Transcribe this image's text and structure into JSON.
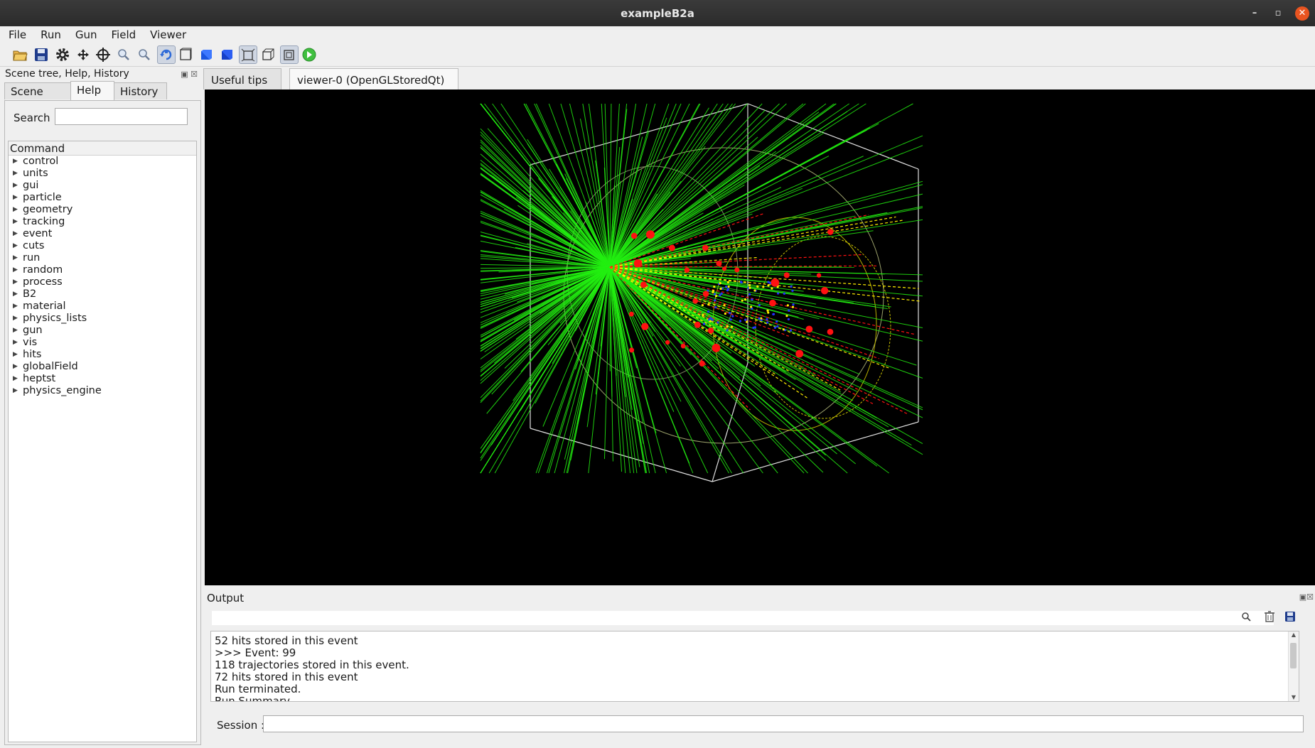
{
  "window": {
    "title": "exampleB2a"
  },
  "menu": [
    "File",
    "Run",
    "Gun",
    "Field",
    "Viewer"
  ],
  "toolbar": [
    {
      "icon": "open-folder-icon",
      "on": false
    },
    {
      "icon": "save-icon",
      "on": false
    },
    {
      "icon": "gear-icon",
      "on": false
    },
    {
      "icon": "move-icon",
      "on": false
    },
    {
      "icon": "crosshair-icon",
      "on": false
    },
    {
      "icon": "zoom-in-icon",
      "on": false
    },
    {
      "icon": "zoom-out-icon",
      "on": false
    },
    {
      "icon": "rotate-icon",
      "on": true
    },
    {
      "icon": "wireframe-icon",
      "on": false
    },
    {
      "icon": "hidden-line-icon",
      "on": false
    },
    {
      "icon": "solid-icon",
      "on": false
    },
    {
      "icon": "perspective-icon",
      "on": true
    },
    {
      "icon": "ortho-icon",
      "on": false
    },
    {
      "icon": "cube-view-icon",
      "on": true
    },
    {
      "icon": "run-beam-icon",
      "on": false
    }
  ],
  "left_dock": {
    "title": "Scene tree, Help, History",
    "tabs": [
      "Scene tree",
      "Help",
      "History"
    ],
    "active_tab": "Help",
    "search_label": "Search :",
    "search_value": "",
    "tree_header": "Command",
    "commands": [
      "control",
      "units",
      "gui",
      "particle",
      "geometry",
      "tracking",
      "event",
      "cuts",
      "run",
      "random",
      "process",
      "B2",
      "material",
      "physics_lists",
      "gun",
      "vis",
      "hits",
      "globalField",
      "heptst",
      "physics_engine"
    ]
  },
  "doc_tabs": [
    {
      "label": "Useful tips",
      "active": false
    },
    {
      "label": "viewer-0 (OpenGLStoredQt)",
      "active": true
    }
  ],
  "output": {
    "title": "Output",
    "lines": [
      "52 hits stored in this event",
      ">>> Event: 99",
      "118 trajectories stored in this event.",
      "72 hits stored in this event",
      "Run terminated.",
      "Run Summary"
    ],
    "session_label": "Session :",
    "session_value": ""
  },
  "colors": {
    "titlebar": "#2b2b2b",
    "close_button": "#e95420",
    "tab_close": "#e12a2a",
    "track_green": "#22ee11",
    "track_red": "#ff1111",
    "track_yellow": "#ffee00",
    "hit_blue": "#2233ff"
  }
}
